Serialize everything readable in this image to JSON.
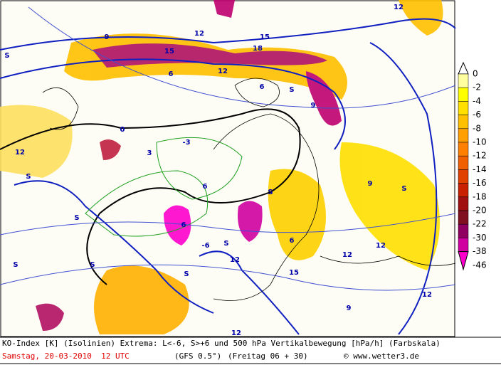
{
  "map": {
    "scale_labels": [
      "0",
      "-2",
      "-4",
      "-6",
      "-8",
      "-10",
      "-12",
      "-14",
      "-16",
      "-18",
      "-20",
      "-22",
      "-30",
      "-38",
      "-46"
    ],
    "scale_colors": [
      "#ffffa0",
      "#ffff00",
      "#ffe000",
      "#ffc000",
      "#ffa000",
      "#ff8000",
      "#f06000",
      "#e04000",
      "#c82000",
      "#a01010",
      "#801020",
      "#900060",
      "#d000a0",
      "#ff00cc"
    ],
    "labels": [
      "12",
      "9",
      "12",
      "15",
      "18",
      "15",
      "12",
      "6",
      "9",
      "6",
      "S",
      "S",
      "S",
      "S",
      "12",
      "6",
      "9",
      "S",
      "S",
      "6",
      "12",
      "S",
      "12",
      "12",
      "15",
      "12",
      "9",
      "S",
      "S",
      "12",
      "-3",
      "0",
      "3",
      "-6",
      "6",
      "S"
    ]
  },
  "footer": {
    "line1": "KO-Index [K] (Isolinien) Extrema: L<-6, S>+6 und 500 hPa Vertikalbewegung [hPa/h] (Farbskala)",
    "date": "Samstag, 20-03-2010  12 UTC",
    "model": "(GFS 0.5°)",
    "run": "(Freitag 06 + 30)",
    "copyright": "© www.wetter3.de"
  }
}
